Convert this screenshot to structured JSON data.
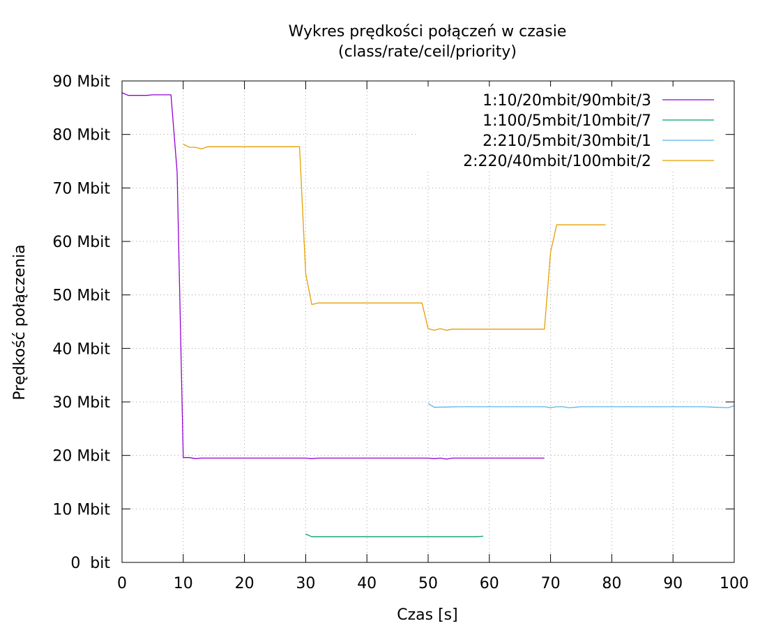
{
  "chart_data": {
    "type": "line",
    "title": "Wykres prędkości połączeń w czasie",
    "subtitle": "(class/rate/ceil/priority)",
    "xlabel": "Czas [s]",
    "ylabel": "Prędkość połączenia",
    "xlim": [
      0,
      100
    ],
    "ylim": [
      0,
      90
    ],
    "x_ticks": [
      0,
      10,
      20,
      30,
      40,
      50,
      60,
      70,
      80,
      90,
      100
    ],
    "x_tick_labels": [
      "0",
      "10",
      "20",
      "30",
      "40",
      "50",
      "60",
      "70",
      "80",
      "90",
      "100"
    ],
    "y_ticks": [
      0,
      10,
      20,
      30,
      40,
      50,
      60,
      70,
      80,
      90
    ],
    "y_tick_labels": [
      "0  bit",
      "10 Mbit",
      "20 Mbit",
      "30 Mbit",
      "40 Mbit",
      "50 Mbit",
      "60 Mbit",
      "70 Mbit",
      "80 Mbit",
      "90 Mbit"
    ],
    "grid": true,
    "legend_position": "top-right",
    "series": [
      {
        "name": "1:10/20mbit/90mbit/3",
        "color": "#9400d3",
        "x": [
          0,
          1,
          2,
          3,
          4,
          5,
          6,
          7,
          8,
          9,
          10,
          11,
          12,
          13,
          14,
          15,
          20,
          25,
          30,
          31,
          32,
          35,
          40,
          45,
          50,
          51,
          52,
          53,
          54,
          55,
          60,
          65,
          69
        ],
        "y": [
          87.8,
          87.3,
          87.3,
          87.3,
          87.3,
          87.4,
          87.4,
          87.4,
          87.4,
          73.0,
          19.6,
          19.6,
          19.4,
          19.5,
          19.5,
          19.5,
          19.5,
          19.5,
          19.5,
          19.4,
          19.5,
          19.5,
          19.5,
          19.5,
          19.5,
          19.4,
          19.5,
          19.3,
          19.5,
          19.5,
          19.5,
          19.5,
          19.5
        ]
      },
      {
        "name": "1:100/5mbit/10mbit/7",
        "color": "#009e73",
        "x": [
          30,
          31,
          35,
          40,
          45,
          50,
          55,
          58,
          59
        ],
        "y": [
          5.3,
          4.8,
          4.8,
          4.8,
          4.8,
          4.8,
          4.8,
          4.8,
          4.9
        ]
      },
      {
        "name": "2:210/5mbit/30mbit/1",
        "color": "#56b4e9",
        "x": [
          50,
          51,
          55,
          60,
          65,
          69,
          70,
          71,
          72,
          73,
          75,
          80,
          85,
          90,
          95,
          99,
          100
        ],
        "y": [
          29.7,
          29.0,
          29.1,
          29.1,
          29.1,
          29.1,
          28.9,
          29.1,
          29.1,
          28.9,
          29.1,
          29.1,
          29.1,
          29.1,
          29.1,
          28.9,
          29.3
        ]
      },
      {
        "name": "2:220/40mbit/100mbit/2",
        "color": "#e69f00",
        "x": [
          10,
          11,
          12,
          13,
          14,
          15,
          20,
          25,
          29,
          30,
          31,
          32,
          35,
          40,
          45,
          49,
          50,
          51,
          52,
          53,
          54,
          55,
          60,
          65,
          69,
          70,
          71,
          75,
          79
        ],
        "y": [
          78.2,
          77.6,
          77.6,
          77.3,
          77.7,
          77.7,
          77.7,
          77.7,
          77.7,
          54.0,
          48.2,
          48.5,
          48.5,
          48.5,
          48.5,
          48.5,
          43.7,
          43.4,
          43.7,
          43.4,
          43.6,
          43.6,
          43.6,
          43.6,
          43.6,
          58.0,
          63.1,
          63.1,
          63.1
        ]
      }
    ]
  }
}
